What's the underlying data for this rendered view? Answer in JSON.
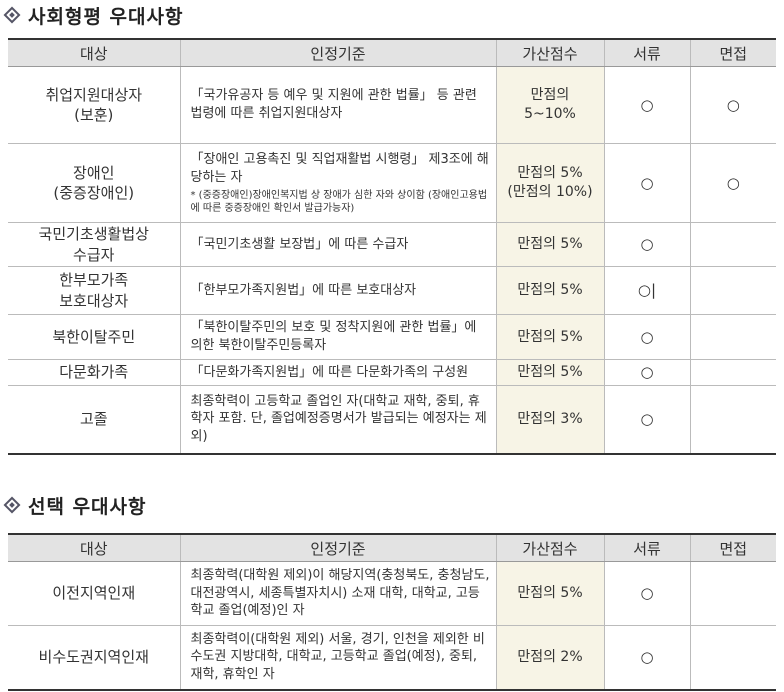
{
  "sections": [
    {
      "title": "사회형평 우대사항",
      "headers": [
        "대상",
        "인정기준",
        "가산점수",
        "서류",
        "면접"
      ],
      "rows": [
        {
          "subject": "취업지원대상자\n(보훈)",
          "criteria": "「국가유공자 등 예우 및 지원에 관한 법률」 등 관련 법령에 따른 취업지원대상자",
          "score": "만점의\n5~10%",
          "doc": "○",
          "interview": "○"
        },
        {
          "subject": "장애인\n(중증장애인)",
          "criteria": "「장애인 고용촉진 및 직업재활법 시행령」 제3조에 해당하는 자",
          "note": "* (중증장애인)장애인복지법 상 장애가 심한 자와 상이함 (장애인고용법에 따른 중증장애인 확인서 발급가능자)",
          "score": "만점의 5%\n(만점의 10%)",
          "doc": "○",
          "interview": "○"
        },
        {
          "subject": "국민기초생활법상\n수급자",
          "criteria": "「국민기초생활 보장법」에 따른 수급자",
          "score": "만점의 5%",
          "doc": "○",
          "interview": ""
        },
        {
          "subject": "한부모가족\n보호대상자",
          "criteria": "「한부모가족지원법」에 따른 보호대상자",
          "score": "만점의 5%",
          "doc": "○|",
          "interview": ""
        },
        {
          "subject": "북한이탈주민",
          "criteria": "「북한이탈주민의 보호 및 정착지원에 관한 법률」에 의한 북한이탈주민등록자",
          "score": "만점의 5%",
          "doc": "○",
          "interview": ""
        },
        {
          "subject": "다문화가족",
          "criteria": "「다문화가족지원법」에 따른 다문화가족의 구성원",
          "score": "만점의 5%",
          "doc": "○",
          "interview": ""
        },
        {
          "subject": "고졸",
          "criteria": "최종학력이 고등학교 졸업인 자(대학교 재학, 중퇴, 휴학자 포함. 단, 졸업예정증명서가 발급되는 예정자는 제외)",
          "score": "만점의 3%",
          "doc": "○",
          "interview": ""
        }
      ]
    },
    {
      "title": "선택 우대사항",
      "headers": [
        "대상",
        "인정기준",
        "가산점수",
        "서류",
        "면접"
      ],
      "rows": [
        {
          "subject": "이전지역인재",
          "criteria": "최종학력(대학원 제외)이 해당지역(충청북도, 충청남도, 대전광역시, 세종특별자치시) 소재 대학, 대학교, 고등학교 졸업(예정)인 자",
          "score": "만점의 5%",
          "doc": "○",
          "interview": ""
        },
        {
          "subject": "비수도권지역인재",
          "criteria": "최종학력이(대학원 제외) 서울, 경기, 인천을 제외한 비수도권 지방대학, 대학교, 고등학교 졸업(예정), 중퇴, 재학, 휴학인 자",
          "score": "만점의 2%",
          "doc": "○",
          "interview": ""
        }
      ]
    }
  ]
}
